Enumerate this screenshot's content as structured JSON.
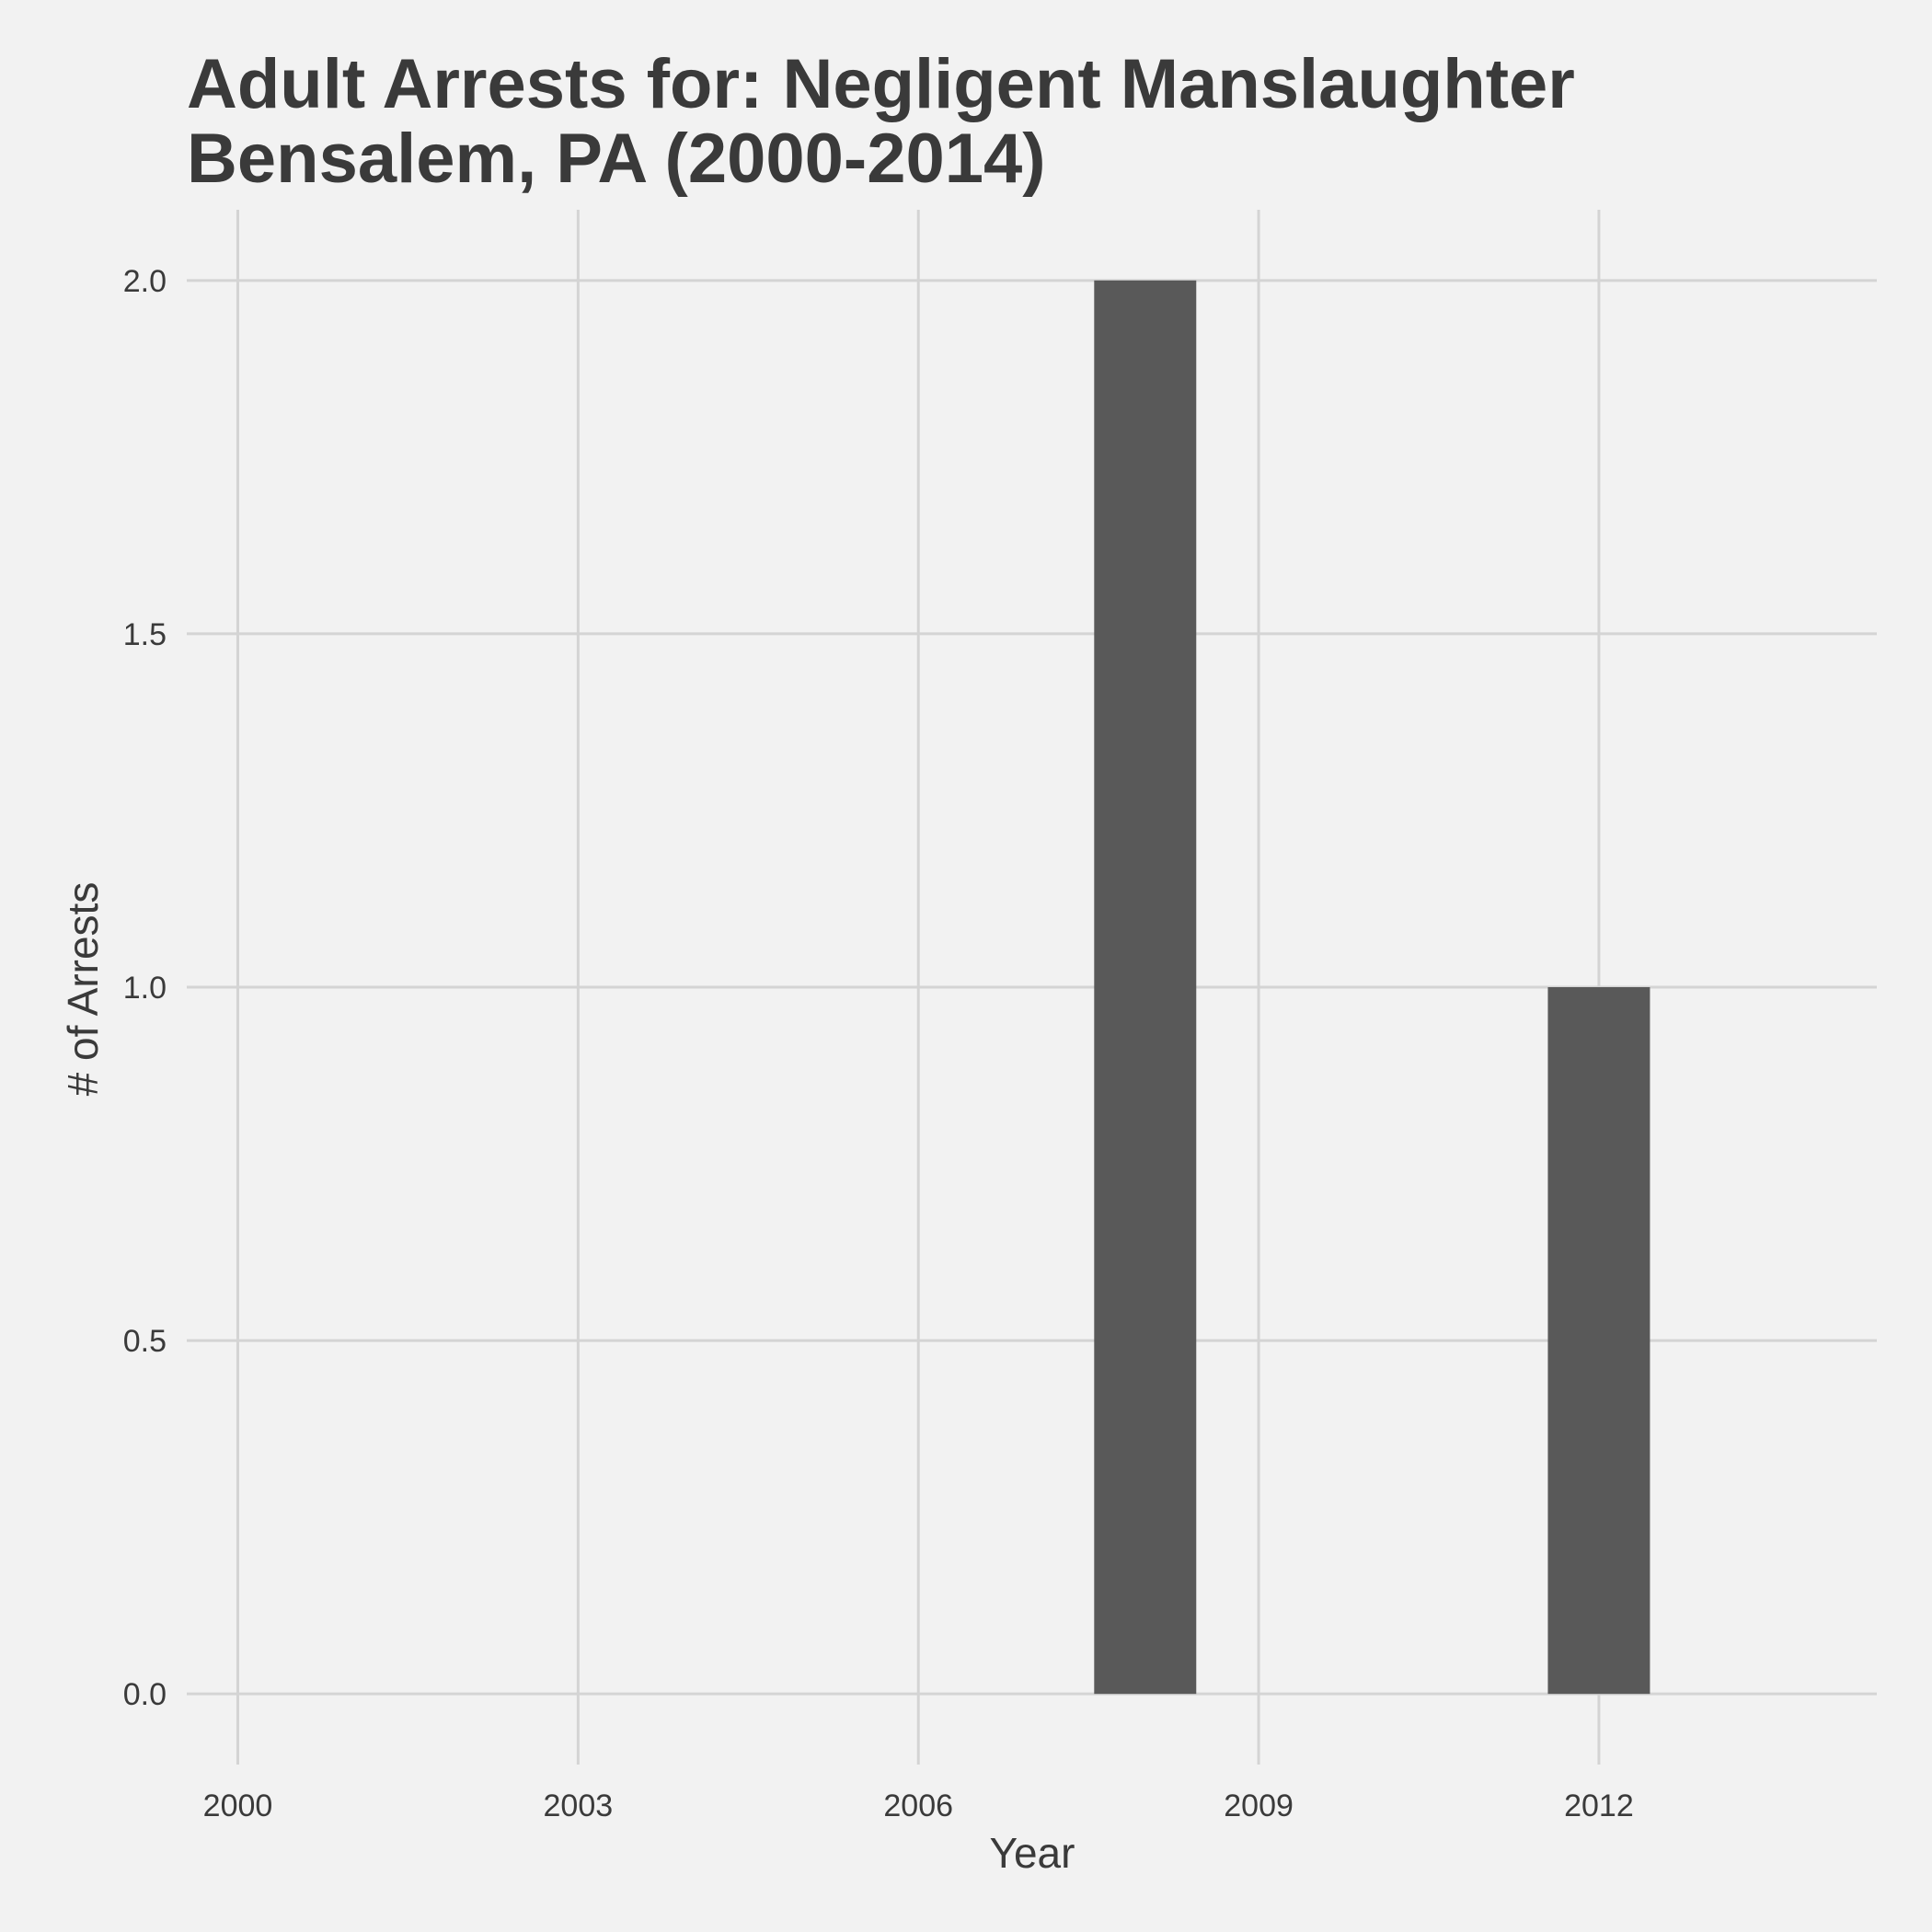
{
  "chart_data": {
    "type": "bar",
    "title_lines": [
      "Adult Arrests for: Negligent Manslaughter",
      "Bensalem, PA (2000-2014)"
    ],
    "xlabel": "Year",
    "ylabel": "# of Arrests",
    "x": [
      2000,
      2001,
      2002,
      2003,
      2004,
      2005,
      2006,
      2007,
      2008,
      2009,
      2010,
      2011,
      2012,
      2013,
      2014
    ],
    "values": [
      0,
      0,
      0,
      0,
      0,
      0,
      0,
      0,
      2,
      0,
      0,
      0,
      1,
      0,
      0
    ],
    "xlim": [
      1999.55,
      2014.45
    ],
    "ylim": [
      -0.1,
      2.1
    ],
    "x_ticks": [
      2000,
      2003,
      2006,
      2009,
      2012
    ],
    "x_tick_labels": [
      "2000",
      "2003",
      "2006",
      "2009",
      "2012"
    ],
    "y_ticks": [
      0,
      0.5,
      1,
      1.5,
      2
    ],
    "y_tick_labels": [
      "0.0",
      "0.5",
      "1.0",
      "1.5",
      "2.0"
    ],
    "grid": true,
    "legend": "none",
    "colors": {
      "bar": "#595959",
      "grid": "#d4d4d4",
      "background": "#f2f2f2",
      "text": "#3a3a3a"
    }
  }
}
